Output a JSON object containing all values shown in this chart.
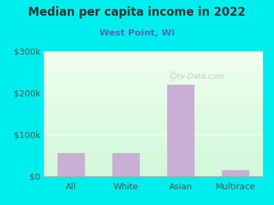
{
  "title": "Median per capita income in 2022",
  "subtitle": "West Point, WI",
  "categories": [
    "All",
    "White",
    "Asian",
    "Multirace"
  ],
  "values": [
    55000,
    55000,
    220000,
    15000
  ],
  "bar_color": "#c9afd4",
  "title_color": "#333333",
  "subtitle_color": "#5566bb",
  "tick_label_color": "#555555",
  "background_outer": "#00eeee",
  "ylim": [
    0,
    300000
  ],
  "yticks": [
    0,
    100000,
    200000,
    300000
  ],
  "ytick_labels": [
    "$0",
    "$100k",
    "$200k",
    "$300k"
  ],
  "watermark": "City-Data.com",
  "figsize": [
    4.0,
    3.0
  ],
  "dpi": 100
}
